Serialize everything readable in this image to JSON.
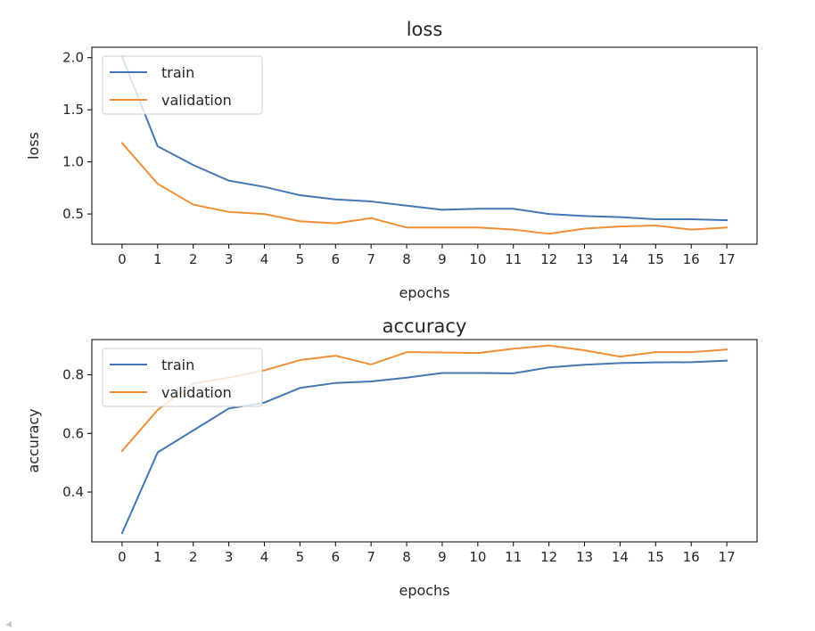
{
  "chart_data": [
    {
      "type": "line",
      "title": "loss",
      "xlabel": "epochs",
      "ylabel": "loss",
      "x": [
        0,
        1,
        2,
        3,
        4,
        5,
        6,
        7,
        8,
        9,
        10,
        11,
        12,
        13,
        14,
        15,
        16,
        17
      ],
      "xticks": [
        "0",
        "1",
        "2",
        "3",
        "4",
        "5",
        "6",
        "7",
        "8",
        "9",
        "10",
        "11",
        "12",
        "13",
        "14",
        "15",
        "16",
        "17"
      ],
      "xlim": [
        -0.85,
        17.85
      ],
      "ylim": [
        0.21,
        2.1
      ],
      "yticks": [
        0.5,
        1.0,
        1.5,
        2.0
      ],
      "ytick_labels": [
        "0.5",
        "1.0",
        "1.5",
        "2.0"
      ],
      "grid": false,
      "legend": "upper-left",
      "series": [
        {
          "name": "train",
          "color": "#4477b4",
          "values": [
            2.01,
            1.15,
            0.97,
            0.82,
            0.76,
            0.68,
            0.64,
            0.62,
            0.58,
            0.54,
            0.55,
            0.55,
            0.5,
            0.48,
            0.47,
            0.45,
            0.45,
            0.44
          ]
        },
        {
          "name": "validation",
          "color": "#f28e36",
          "values": [
            1.18,
            0.79,
            0.59,
            0.52,
            0.5,
            0.43,
            0.41,
            0.46,
            0.37,
            0.37,
            0.37,
            0.35,
            0.31,
            0.36,
            0.38,
            0.39,
            0.35,
            0.37
          ]
        }
      ]
    },
    {
      "type": "line",
      "title": "accuracy",
      "xlabel": "epochs",
      "ylabel": "accuracy",
      "x": [
        0,
        1,
        2,
        3,
        4,
        5,
        6,
        7,
        8,
        9,
        10,
        11,
        12,
        13,
        14,
        15,
        16,
        17
      ],
      "xticks": [
        "0",
        "1",
        "2",
        "3",
        "4",
        "5",
        "6",
        "7",
        "8",
        "9",
        "10",
        "11",
        "12",
        "13",
        "14",
        "15",
        "16",
        "17"
      ],
      "xlim": [
        -0.85,
        17.85
      ],
      "ylim": [
        0.23,
        0.92
      ],
      "yticks": [
        0.4,
        0.6,
        0.8
      ],
      "ytick_labels": [
        "0.4",
        "0.6",
        "0.8"
      ],
      "grid": false,
      "legend": "upper-left",
      "series": [
        {
          "name": "train",
          "color": "#4477b4",
          "values": [
            0.26,
            0.535,
            0.61,
            0.685,
            0.705,
            0.755,
            0.772,
            0.777,
            0.79,
            0.806,
            0.806,
            0.805,
            0.825,
            0.834,
            0.84,
            0.842,
            0.843,
            0.848
          ]
        },
        {
          "name": "validation",
          "color": "#f28e36",
          "values": [
            0.54,
            0.68,
            0.77,
            0.79,
            0.815,
            0.85,
            0.865,
            0.835,
            0.877,
            0.876,
            0.874,
            0.889,
            0.9,
            0.883,
            0.862,
            0.877,
            0.877,
            0.886
          ]
        }
      ]
    }
  ]
}
